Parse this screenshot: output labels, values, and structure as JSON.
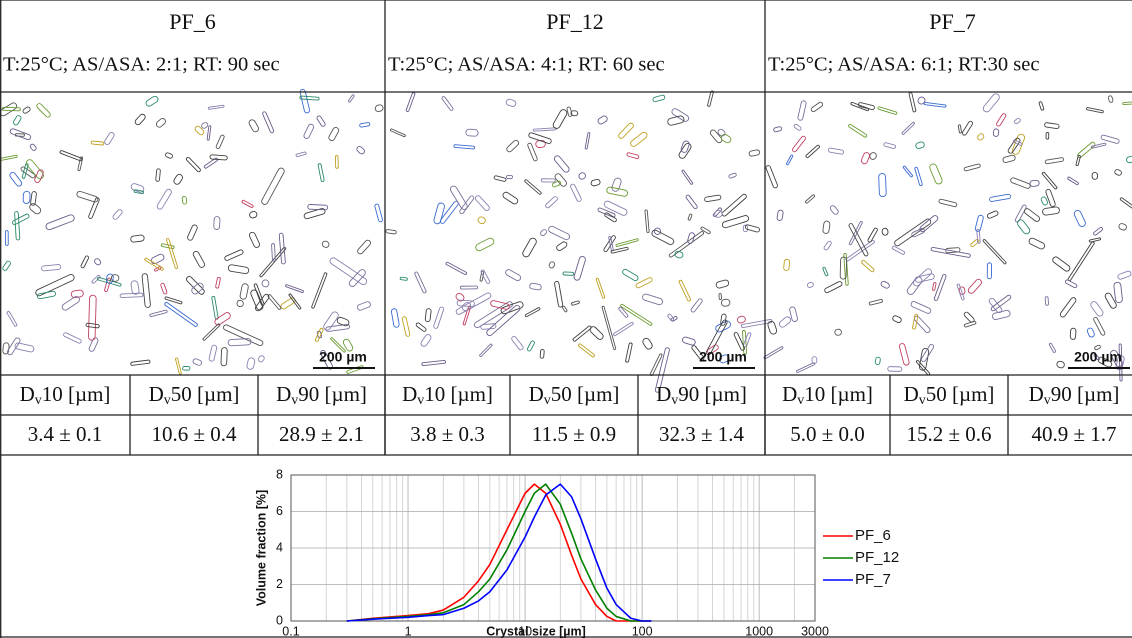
{
  "samples": [
    {
      "name": "PF_6",
      "conditions": "T:25°C; AS/ASA: 2:1; RT: 90 sec",
      "scale_bar": "200 µm",
      "stats": [
        "3.4 ± 0.1",
        "10.6 ± 0.4",
        "28.9 ± 2.1"
      ]
    },
    {
      "name": "PF_12",
      "conditions": "T:25°C; AS/ASA: 4:1; RT: 60 sec",
      "scale_bar": "200 µm",
      "stats": [
        "3.8 ± 0.3",
        "11.5 ± 0.9",
        "32.3 ± 1.4"
      ]
    },
    {
      "name": "PF_7",
      "conditions": "T:25°C; AS/ASA: 6:1; RT:30 sec",
      "scale_bar": "200 µm",
      "stats": [
        "5.0 ± 0.0",
        "15.2 ± 0.6",
        "40.9 ± 1.7"
      ]
    }
  ],
  "stat_headers": [
    {
      "main": "D",
      "sub": "v",
      "rest": "10 [µm]"
    },
    {
      "main": "D",
      "sub": "v",
      "rest": "50 [µm]"
    },
    {
      "main": "D",
      "sub": "v",
      "rest": "90 [µm]"
    }
  ],
  "chart_data": {
    "type": "line",
    "xlabel": "Crystal size [µm]",
    "ylabel": "Volume fraction [%]",
    "x": [
      0.3,
      0.5,
      1,
      1.5,
      2,
      3,
      4,
      5,
      7,
      10,
      12,
      15,
      20,
      25,
      30,
      40,
      50,
      60,
      80,
      100,
      120
    ],
    "series": [
      {
        "name": "PF_6",
        "color": "#ff0000",
        "values": [
          0,
          0.15,
          0.3,
          0.4,
          0.6,
          1.3,
          2.2,
          3.1,
          5.0,
          7.0,
          7.5,
          7.0,
          5.3,
          3.6,
          2.3,
          0.9,
          0.25,
          0,
          0,
          0,
          0
        ]
      },
      {
        "name": "PF_12",
        "color": "#008000",
        "values": [
          0,
          0.12,
          0.25,
          0.35,
          0.45,
          0.9,
          1.6,
          2.3,
          3.9,
          6.0,
          7.0,
          7.5,
          6.4,
          4.8,
          3.4,
          1.7,
          0.7,
          0.25,
          0,
          0,
          0
        ]
      },
      {
        "name": "PF_7",
        "color": "#0000ff",
        "values": [
          0,
          0.1,
          0.2,
          0.3,
          0.35,
          0.7,
          1.1,
          1.6,
          2.8,
          4.6,
          5.7,
          6.9,
          7.5,
          6.8,
          5.6,
          3.4,
          1.8,
          0.9,
          0.15,
          0,
          0
        ]
      }
    ],
    "xlim": [
      0.1,
      3000
    ],
    "xticks": [
      0.1,
      1,
      10,
      100,
      1000,
      3000
    ],
    "xlog": true,
    "ylim": [
      0,
      8
    ],
    "yticks": [
      0,
      2,
      4,
      6,
      8
    ],
    "grid": true,
    "legend": "right"
  }
}
